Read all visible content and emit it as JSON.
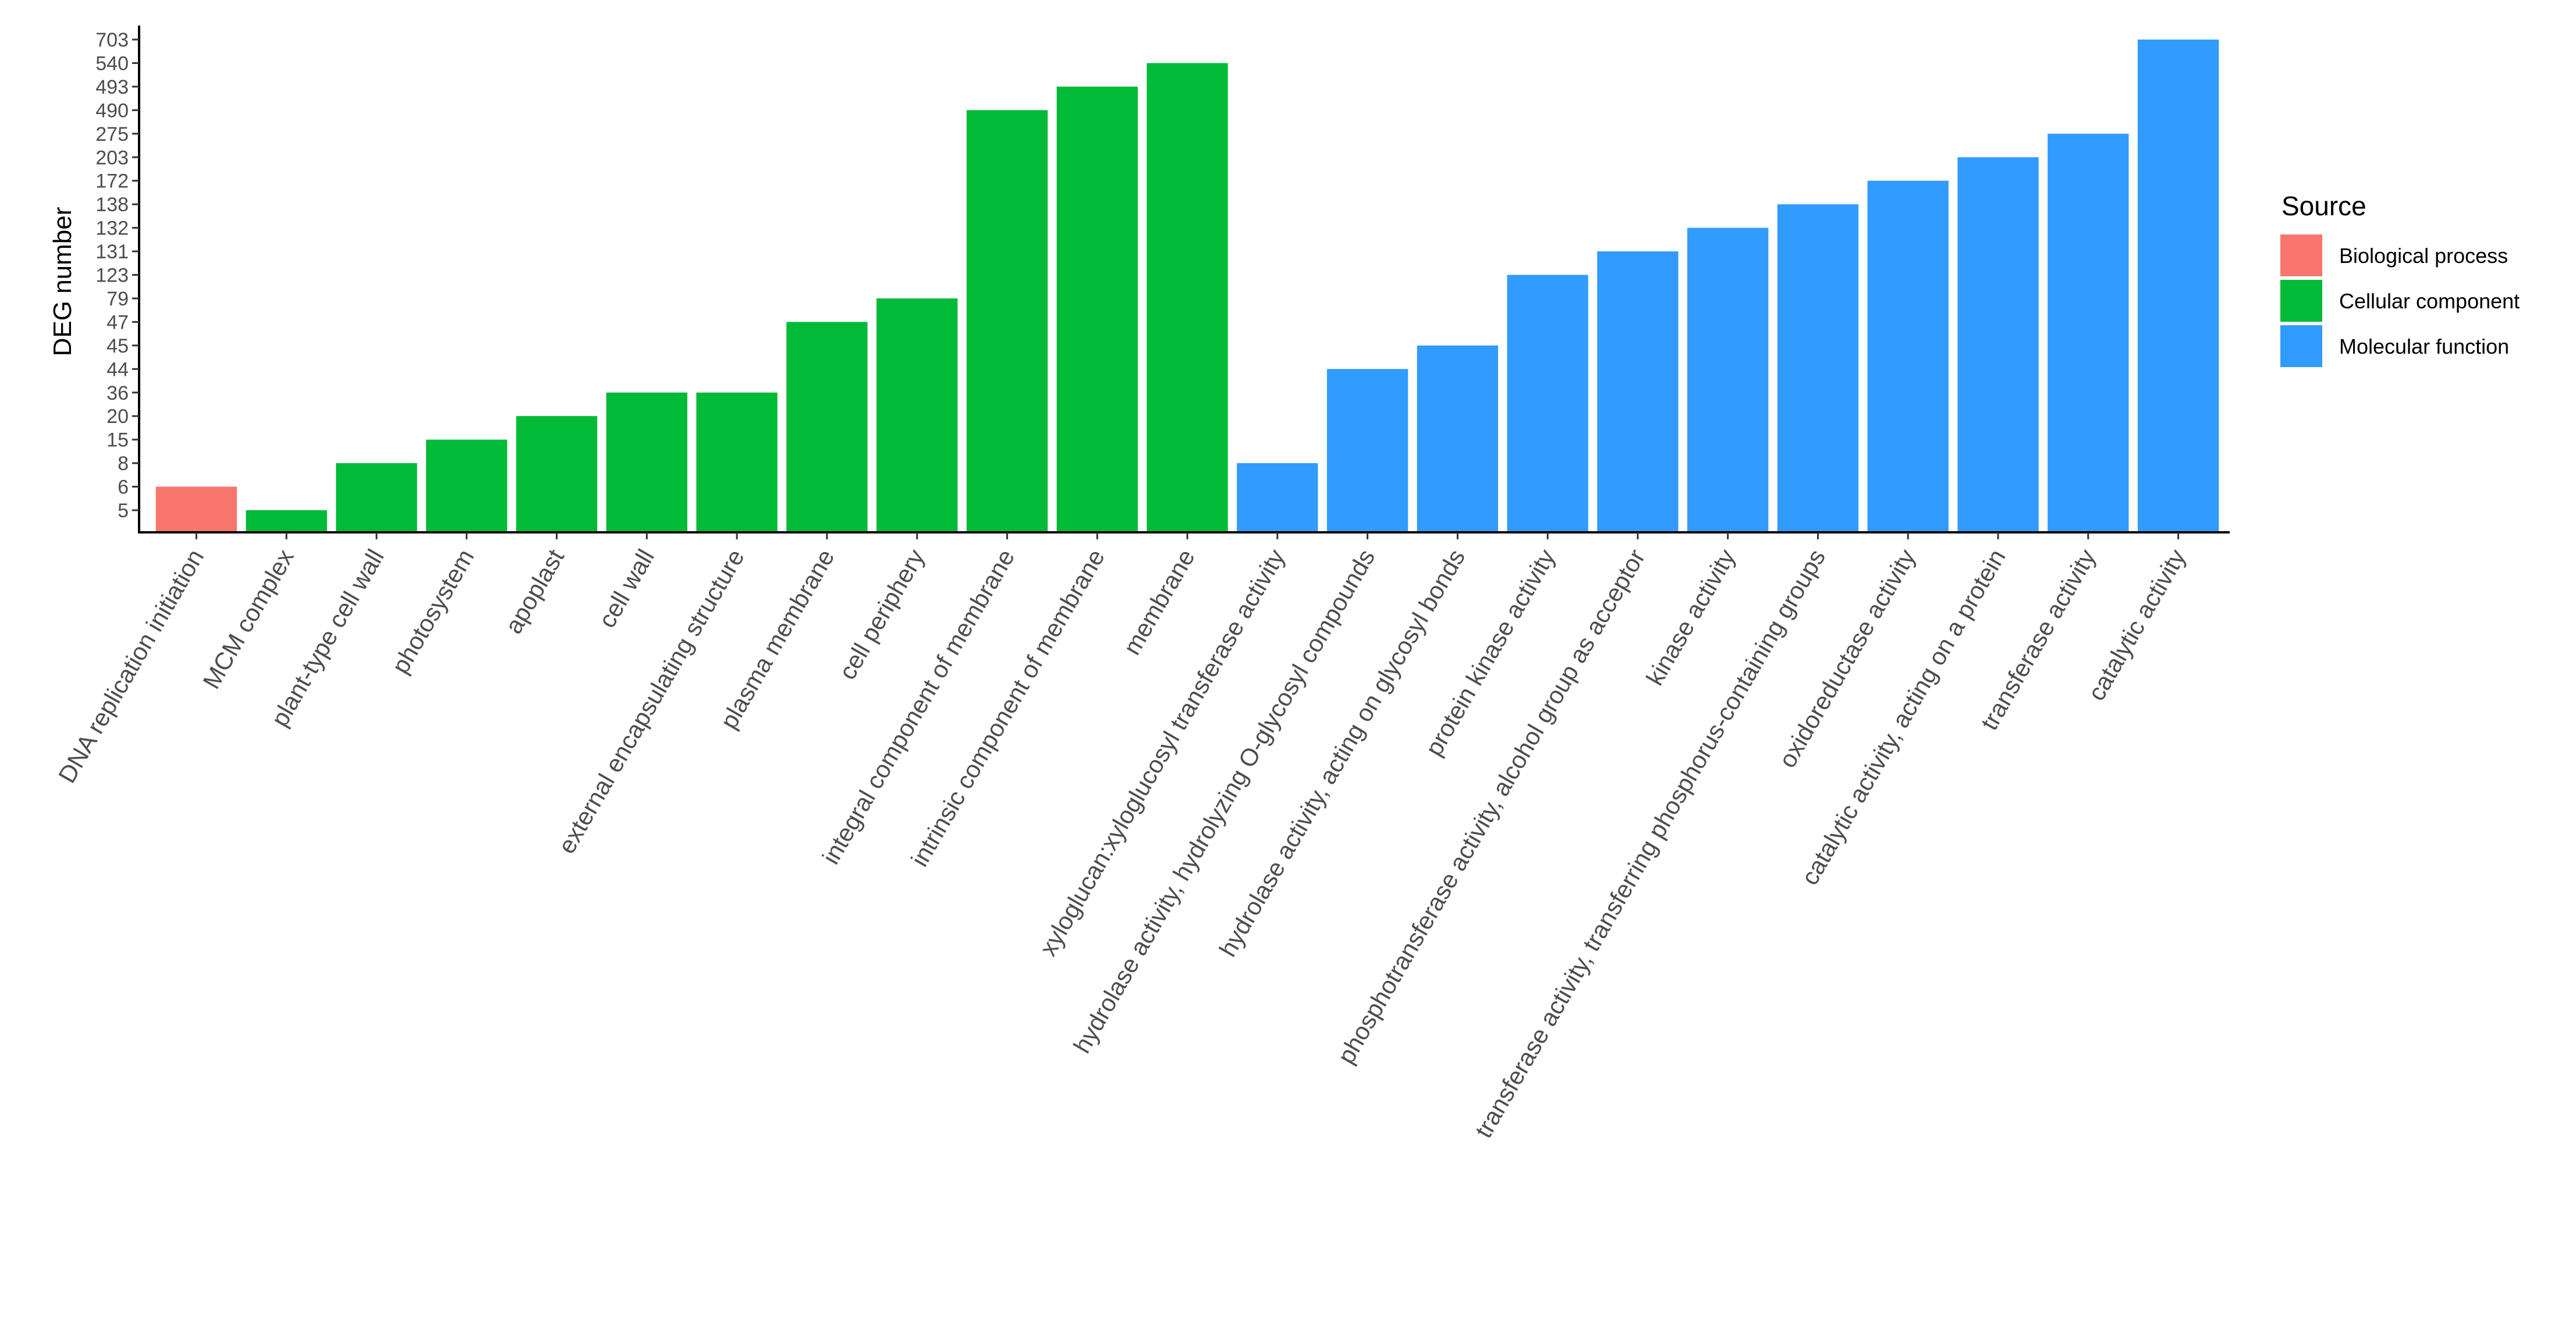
{
  "chart_data": {
    "type": "bar",
    "ylabel": "DEG number",
    "xlabel": "",
    "y_tick_labels": [
      "5",
      "6",
      "8",
      "15",
      "20",
      "36",
      "44",
      "45",
      "47",
      "79",
      "123",
      "131",
      "132",
      "138",
      "172",
      "203",
      "275",
      "490",
      "493",
      "540",
      "703"
    ],
    "categories": [
      "DNA replication initiation",
      "MCM complex",
      "plant-type cell wall",
      "photosystem",
      "apoplast",
      "cell wall",
      "external encapsulating structure",
      "plasma membrane",
      "cell periphery",
      "integral component of membrane",
      "intrinsic component of membrane",
      "membrane",
      "xyloglucan:xyloglucosyl transferase activity",
      "hydrolase activity, hydrolyzing O-glycosyl compounds",
      "hydrolase activity, acting on glycosyl bonds",
      "protein kinase activity",
      "phosphotransferase activity, alcohol group as acceptor",
      "kinase activity",
      "transferase activity, transferring phosphorus-containing groups",
      "oxidoreductase activity",
      "catalytic activity, acting on a protein",
      "transferase activity",
      "catalytic activity"
    ],
    "values": [
      6,
      5,
      8,
      15,
      20,
      36,
      36,
      47,
      79,
      490,
      493,
      540,
      8,
      44,
      45,
      123,
      131,
      132,
      138,
      172,
      203,
      275,
      703
    ],
    "sources": [
      "Biological process",
      "Cellular component",
      "Cellular component",
      "Cellular component",
      "Cellular component",
      "Cellular component",
      "Cellular component",
      "Cellular component",
      "Cellular component",
      "Cellular component",
      "Cellular component",
      "Cellular component",
      "Molecular function",
      "Molecular function",
      "Molecular function",
      "Molecular function",
      "Molecular function",
      "Molecular function",
      "Molecular function",
      "Molecular function",
      "Molecular function",
      "Molecular function",
      "Molecular function"
    ],
    "legend": {
      "title": "Source",
      "placement": "right",
      "entries": [
        {
          "label": "Biological process",
          "color": "#F8766D"
        },
        {
          "label": "Cellular component",
          "color": "#00BA38"
        },
        {
          "label": "Molecular function",
          "color": "#319BFF"
        }
      ]
    },
    "grid": false
  }
}
